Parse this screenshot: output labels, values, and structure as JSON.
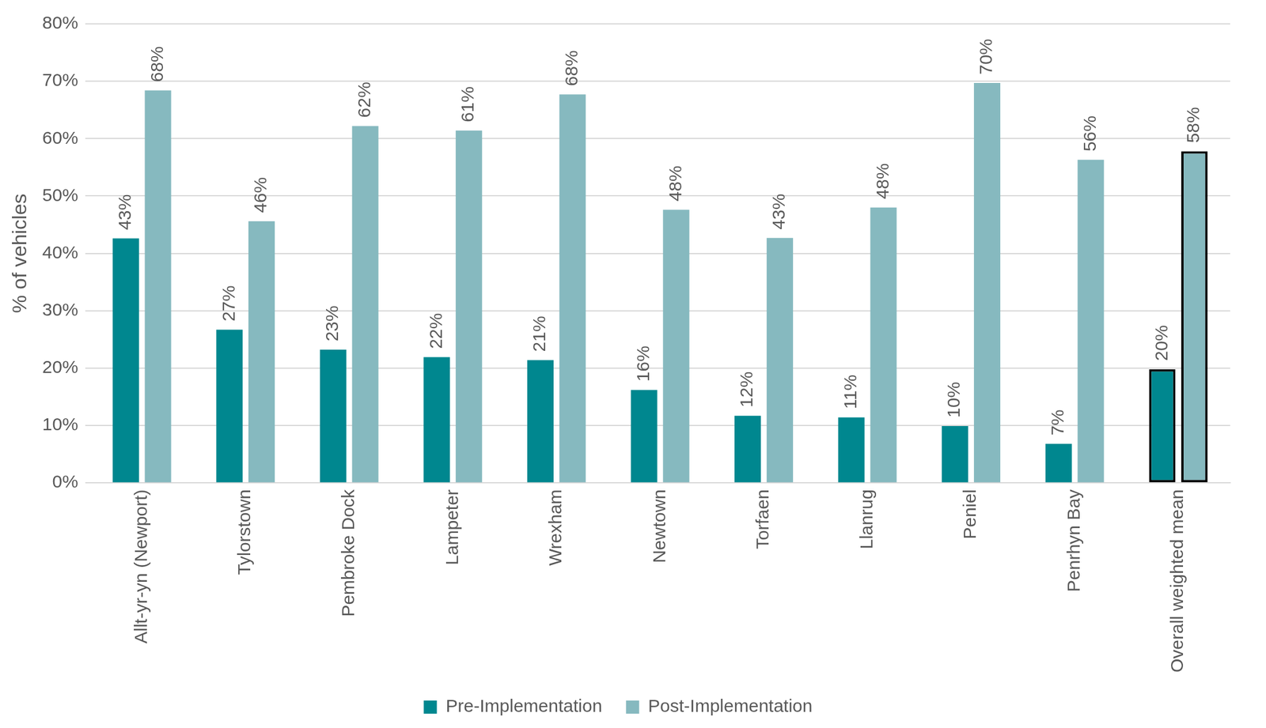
{
  "chart_data": {
    "type": "bar",
    "y_label": "% of vehicles",
    "categories": [
      "Allt-yr-yn (Newport)",
      "Tylorstown",
      "Pembroke Dock",
      "Lampeter",
      "Wrexham",
      "Newtown",
      "Torfaen",
      "Llanrug",
      "Peniel",
      "Penrhyn Bay",
      "Overall weighted mean"
    ],
    "series": [
      {
        "name": "Pre-Implementation",
        "color": "#00878f",
        "values": [
          42.6,
          26.7,
          23.2,
          21.9,
          21.4,
          16.2,
          11.7,
          11.4,
          9.9,
          6.8,
          19.8
        ],
        "value_labels": [
          "43%",
          "27%",
          "23%",
          "22%",
          "21%",
          "16%",
          "12%",
          "11%",
          "10%",
          "7%",
          "20%"
        ]
      },
      {
        "name": "Post-Implementation",
        "color": "#86b9bf",
        "values": [
          68.4,
          45.6,
          62.2,
          61.4,
          67.7,
          47.6,
          42.7,
          48.0,
          69.7,
          56.3,
          57.8
        ],
        "value_labels": [
          "68%",
          "46%",
          "62%",
          "61%",
          "68%",
          "48%",
          "43%",
          "48%",
          "70%",
          "56%",
          "58%"
        ]
      }
    ],
    "ylim": [
      0,
      80
    ],
    "yticks": [
      {
        "value": 0,
        "label": "0%"
      },
      {
        "value": 10,
        "label": "10%"
      },
      {
        "value": 20,
        "label": "20%"
      },
      {
        "value": 30,
        "label": "30%"
      },
      {
        "value": 40,
        "label": "40%"
      },
      {
        "value": 50,
        "label": "50%"
      },
      {
        "value": 60,
        "label": "60%"
      },
      {
        "value": 70,
        "label": "70%"
      },
      {
        "value": 80,
        "label": "80%"
      }
    ],
    "grid": true,
    "legend": "bottom",
    "data_labels": true
  }
}
